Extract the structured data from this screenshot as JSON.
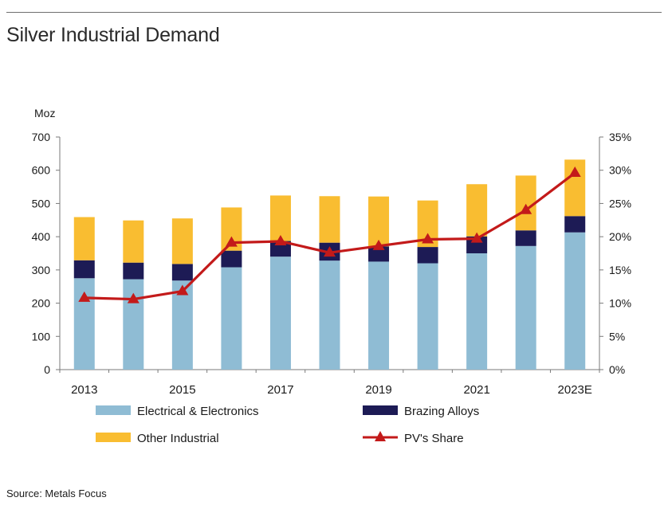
{
  "title": "Silver Industrial Demand",
  "source": "Source: Metals Focus",
  "colors": {
    "electrical": "#8fbcd4",
    "brazing": "#1d1b55",
    "other": "#f9bd31",
    "pv": "#c31a1a"
  },
  "chart_data": {
    "type": "bar",
    "stacked": true,
    "categories": [
      "2013",
      "2014",
      "2015",
      "2016",
      "2017",
      "2018",
      "2019",
      "2020",
      "2021",
      "2022",
      "2023E"
    ],
    "x_tick_labels": [
      "2013",
      "2015",
      "2017",
      "2019",
      "2021",
      "2023E"
    ],
    "ylabel": "Moz",
    "ylim": [
      0,
      700
    ],
    "y_ticks": [
      "0",
      "100",
      "200",
      "300",
      "400",
      "500",
      "600",
      "700"
    ],
    "y2lim": [
      0,
      35
    ],
    "y2_ticks": [
      "0%",
      "5%",
      "10%",
      "15%",
      "20%",
      "25%",
      "30%",
      "35%"
    ],
    "series": [
      {
        "name": "Electrical & Electronics",
        "axis": "left",
        "values": [
          275,
          272,
          268,
          308,
          340,
          328,
          325,
          320,
          350,
          372,
          413
        ]
      },
      {
        "name": "Brazing Alloys",
        "axis": "left",
        "values": [
          54,
          50,
          50,
          50,
          47,
          54,
          46,
          49,
          51,
          47,
          49
        ]
      },
      {
        "name": "Other Industrial",
        "axis": "left",
        "values": [
          130,
          127,
          137,
          130,
          137,
          140,
          150,
          140,
          157,
          165,
          170
        ]
      },
      {
        "name": "PV's Share",
        "type": "line",
        "axis": "right",
        "unit": "%",
        "values": [
          10.8,
          10.6,
          11.8,
          19.1,
          19.3,
          17.6,
          18.6,
          19.6,
          19.7,
          24.0,
          29.6
        ]
      }
    ],
    "legend": [
      {
        "label": "Electrical & Electronics",
        "kind": "bar",
        "color": "#8fbcd4"
      },
      {
        "label": "Brazing Alloys",
        "kind": "bar",
        "color": "#1d1b55"
      },
      {
        "label": "Other Industrial",
        "kind": "bar",
        "color": "#f9bd31"
      },
      {
        "label": "PV's Share",
        "kind": "line",
        "color": "#c31a1a"
      }
    ],
    "legend_position": "bottom",
    "grid": false
  }
}
